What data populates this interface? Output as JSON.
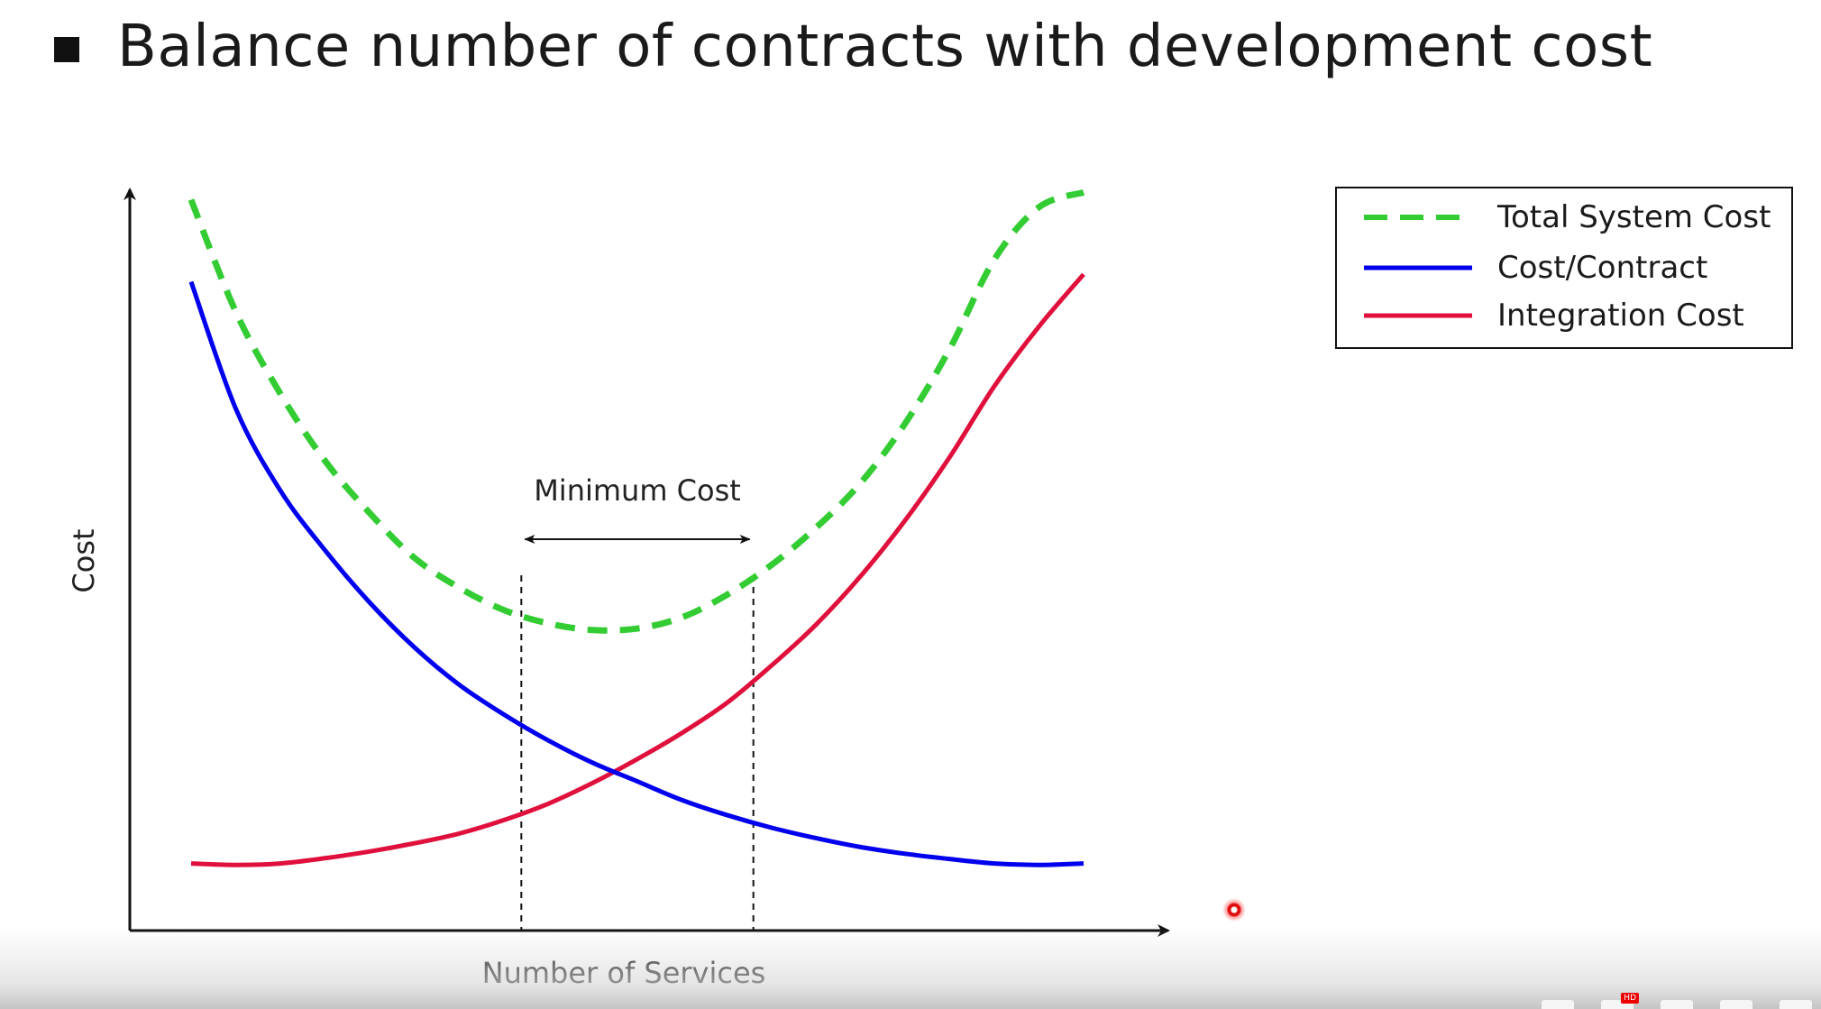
{
  "slide": {
    "title": "Balance number of contracts with development cost"
  },
  "chart_data": {
    "type": "line",
    "title": "",
    "xlabel": "Number of Services",
    "ylabel": "Cost",
    "xlim": [
      0,
      10
    ],
    "ylim": [
      0,
      10
    ],
    "grid": false,
    "legend_position": "top-right",
    "series": [
      {
        "name": "Total System Cost",
        "color": "#33cc33",
        "style": "dashed",
        "x": [
          0,
          0.5,
          1,
          1.5,
          2,
          2.5,
          3,
          3.5,
          4,
          4.5,
          5,
          5.5,
          6,
          6.5,
          7,
          7.5,
          8,
          8.5,
          9,
          9.5,
          10
        ],
        "y": [
          9.8,
          8.3,
          7.2,
          6.3,
          5.6,
          5.0,
          4.6,
          4.3,
          4.12,
          4.03,
          4.05,
          4.2,
          4.5,
          4.9,
          5.4,
          6.0,
          6.8,
          7.8,
          9.0,
          9.7,
          9.9
        ]
      },
      {
        "name": "Cost/Contract",
        "color": "#0000ee",
        "style": "solid",
        "x": [
          0,
          0.5,
          1,
          1.5,
          2,
          2.5,
          3,
          3.5,
          4,
          4.5,
          5,
          5.5,
          6,
          6.5,
          7,
          7.5,
          8,
          8.5,
          9,
          9.5,
          10
        ],
        "y": [
          8.7,
          7.0,
          5.9,
          5.1,
          4.4,
          3.8,
          3.3,
          2.9,
          2.55,
          2.25,
          2.0,
          1.75,
          1.55,
          1.38,
          1.24,
          1.12,
          1.03,
          0.96,
          0.9,
          0.88,
          0.9
        ]
      },
      {
        "name": "Integration Cost",
        "color": "#e0103c",
        "style": "solid",
        "x": [
          0,
          0.5,
          1,
          1.5,
          2,
          2.5,
          3,
          3.5,
          4,
          4.5,
          5,
          5.5,
          6,
          6.5,
          7,
          7.5,
          8,
          8.5,
          9,
          9.5,
          10
        ],
        "y": [
          0.9,
          0.88,
          0.9,
          0.97,
          1.06,
          1.17,
          1.3,
          1.48,
          1.7,
          1.98,
          2.3,
          2.65,
          3.05,
          3.55,
          4.1,
          4.75,
          5.5,
          6.35,
          7.3,
          8.1,
          8.8
        ]
      }
    ],
    "annotations": [
      {
        "text": "Minimum Cost",
        "type": "range",
        "x_from": 3.7,
        "x_to": 6.3
      }
    ],
    "guides": [
      {
        "type": "vline",
        "x": 3.7,
        "style": "dashed"
      },
      {
        "type": "vline",
        "x": 6.3,
        "style": "dashed"
      }
    ]
  },
  "player": {
    "hd_badge": "HD"
  }
}
